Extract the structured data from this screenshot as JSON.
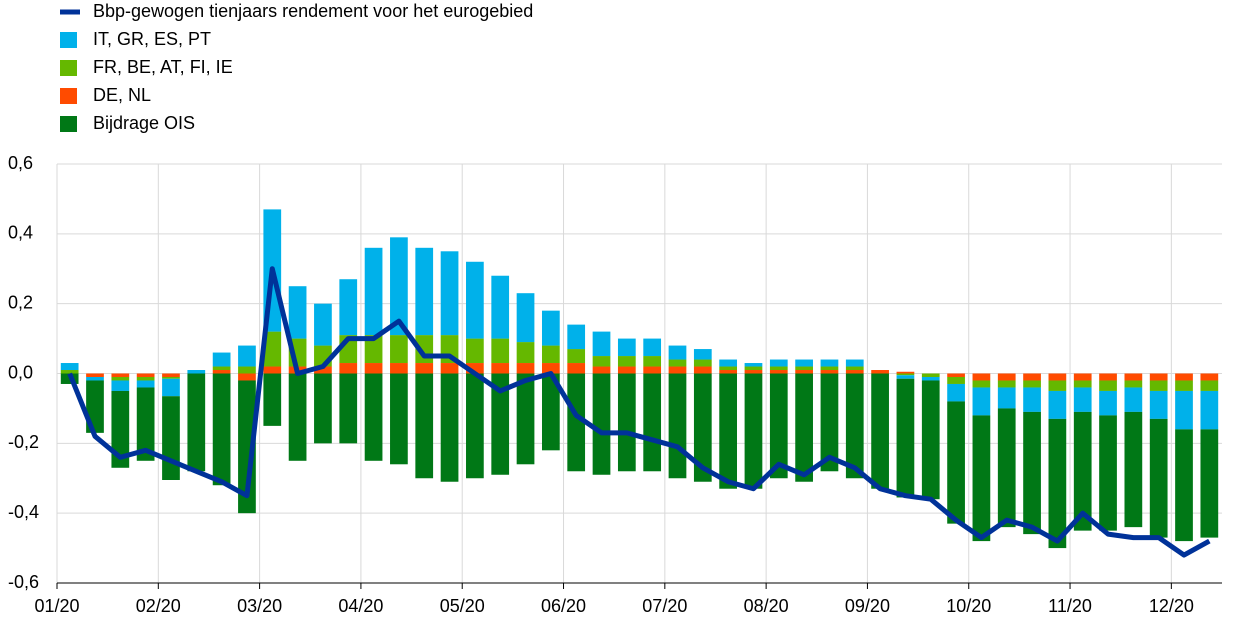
{
  "chart_data": {
    "type": "bar",
    "categories": [
      "01/20",
      null,
      null,
      null,
      "02/20",
      null,
      null,
      null,
      "03/20",
      null,
      null,
      null,
      "04/20",
      null,
      null,
      null,
      "05/20",
      null,
      null,
      null,
      "06/20",
      null,
      null,
      null,
      "07/20",
      null,
      null,
      null,
      "08/20",
      null,
      null,
      null,
      "09/20",
      null,
      null,
      null,
      "10/20",
      null,
      null,
      null,
      "11/20",
      null,
      null,
      null,
      "12/20",
      null
    ],
    "series": [
      {
        "name": "Bbp-gewogen tienjaars rendement voor het eurogebied",
        "type": "line",
        "color": "#003299",
        "values": [
          0.0,
          -0.18,
          -0.24,
          -0.22,
          -0.25,
          -0.28,
          -0.31,
          -0.35,
          0.3,
          0.0,
          0.02,
          0.1,
          0.1,
          0.15,
          0.05,
          0.05,
          0.0,
          -0.05,
          -0.02,
          0.0,
          -0.12,
          -0.17,
          -0.17,
          -0.19,
          -0.21,
          -0.27,
          -0.31,
          -0.33,
          -0.26,
          -0.29,
          -0.24,
          -0.27,
          -0.33,
          -0.35,
          -0.36,
          -0.42,
          -0.47,
          -0.42,
          -0.44,
          -0.48,
          -0.4,
          -0.46,
          -0.47,
          -0.47,
          -0.52,
          -0.48
        ]
      },
      {
        "name": "IT, GR, ES, PT",
        "type": "bar",
        "color": "#00b1ea",
        "values": [
          0.02,
          -0.01,
          -0.03,
          -0.02,
          -0.05,
          0.01,
          0.04,
          0.06,
          0.35,
          0.15,
          0.12,
          0.16,
          0.25,
          0.28,
          0.25,
          0.24,
          0.22,
          0.18,
          0.14,
          0.1,
          0.07,
          0.07,
          0.05,
          0.05,
          0.04,
          0.03,
          0.02,
          0.01,
          0.02,
          0.02,
          0.02,
          0.02,
          0.0,
          -0.01,
          -0.01,
          -0.05,
          -0.08,
          -0.06,
          -0.07,
          -0.08,
          -0.07,
          -0.07,
          -0.07,
          -0.08,
          -0.11,
          -0.11
        ]
      },
      {
        "name": "FR, BE, AT, FI, IE",
        "type": "bar",
        "color": "#65b800",
        "values": [
          0.01,
          0.0,
          -0.01,
          -0.01,
          -0.005,
          0.0,
          0.01,
          0.02,
          0.1,
          0.08,
          0.06,
          0.08,
          0.08,
          0.08,
          0.08,
          0.08,
          0.07,
          0.07,
          0.06,
          0.05,
          0.04,
          0.03,
          0.03,
          0.03,
          0.02,
          0.02,
          0.01,
          0.01,
          0.01,
          0.01,
          0.01,
          0.01,
          0.0,
          -0.005,
          -0.01,
          -0.02,
          -0.02,
          -0.02,
          -0.02,
          -0.03,
          -0.02,
          -0.03,
          -0.02,
          -0.03,
          -0.03,
          -0.03
        ]
      },
      {
        "name": "DE, NL",
        "type": "bar",
        "color": "#ff4b00",
        "values": [
          0.0,
          -0.01,
          -0.01,
          -0.01,
          -0.01,
          0.0,
          0.01,
          -0.02,
          0.02,
          0.02,
          0.02,
          0.03,
          0.03,
          0.03,
          0.03,
          0.03,
          0.03,
          0.03,
          0.03,
          0.03,
          0.03,
          0.02,
          0.02,
          0.02,
          0.02,
          0.02,
          0.01,
          0.01,
          0.01,
          0.01,
          0.01,
          0.01,
          0.01,
          0.005,
          0.0,
          -0.01,
          -0.02,
          -0.02,
          -0.02,
          -0.02,
          -0.02,
          -0.02,
          -0.02,
          -0.02,
          -0.02,
          -0.02
        ]
      },
      {
        "name": "Bijdrage OIS",
        "type": "bar",
        "color": "#007816",
        "values": [
          -0.03,
          -0.15,
          -0.22,
          -0.21,
          -0.24,
          -0.28,
          -0.32,
          -0.38,
          -0.15,
          -0.25,
          -0.2,
          -0.2,
          -0.25,
          -0.26,
          -0.3,
          -0.31,
          -0.3,
          -0.29,
          -0.26,
          -0.22,
          -0.28,
          -0.29,
          -0.28,
          -0.28,
          -0.3,
          -0.31,
          -0.33,
          -0.33,
          -0.3,
          -0.31,
          -0.28,
          -0.3,
          -0.33,
          -0.34,
          -0.34,
          -0.35,
          -0.36,
          -0.34,
          -0.35,
          -0.37,
          -0.34,
          -0.33,
          -0.33,
          -0.34,
          -0.32,
          -0.31
        ]
      }
    ],
    "ylim": [
      -0.6,
      0.6
    ],
    "yticks": [
      {
        "value": 0.6,
        "label": "0,6"
      },
      {
        "value": 0.4,
        "label": "0,4"
      },
      {
        "value": 0.2,
        "label": "0,2"
      },
      {
        "value": 0.0,
        "label": "0,0"
      },
      {
        "value": -0.2,
        "label": "-0,2"
      },
      {
        "value": -0.4,
        "label": "-0,4"
      },
      {
        "value": -0.6,
        "label": "-0,6"
      }
    ],
    "grid": true,
    "legend": "top-left"
  }
}
